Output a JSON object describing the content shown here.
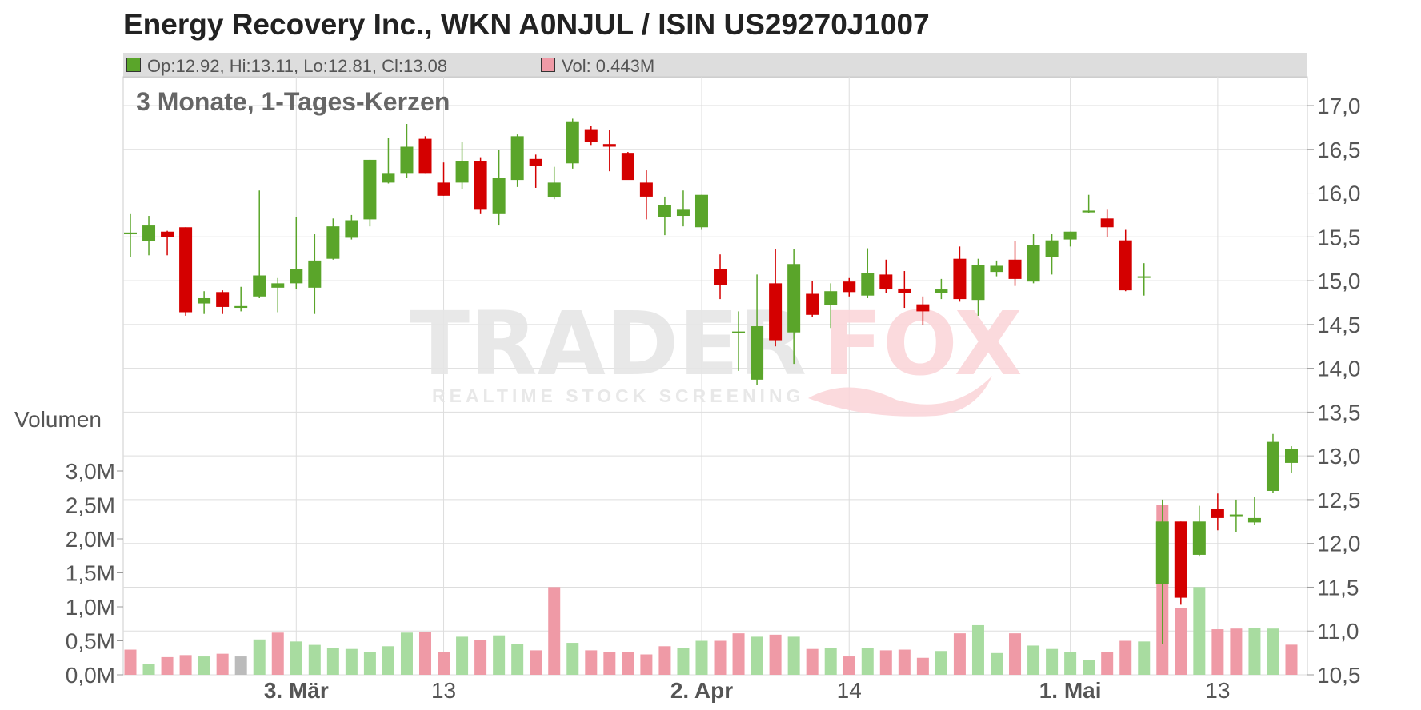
{
  "title": "Energy Recovery Inc., WKN A0NJUL / ISIN US29270J1007",
  "legend": {
    "ohlc_text": "Op:12.92, Hi:13.11, Lo:12.81, Cl:13.08",
    "volume_text": "Vol: 0.443M",
    "up_color": "#5aa52a",
    "vol_up_color": "#ef9aa6"
  },
  "watermark": {
    "brand_left": "TRADER",
    "brand_right": "FOX",
    "tagline": "REALTIME STOCK SCREENING"
  },
  "chart_data": {
    "type": "candlestick",
    "subtitle": "3 Monate, 1-Tages-Kerzen",
    "colors": {
      "up": "#5aa52a",
      "down": "#d40000",
      "vol_up": "#a8dca0",
      "vol_down": "#ef9aa6",
      "vol_neutral": "#bbbbbb",
      "grid": "#dddddd"
    },
    "price_axis": {
      "min": 10.5,
      "max": 17.0,
      "step": 0.5,
      "tick_labels": [
        "17,0",
        "16,5",
        "16,0",
        "15,5",
        "15,0",
        "14,5",
        "14,0",
        "13,5",
        "13,0",
        "12,5",
        "12,0",
        "11,5",
        "11,0",
        "10,5"
      ]
    },
    "volume_axis": {
      "label": "Volumen",
      "min": 0,
      "max": 3.0,
      "tick_labels": [
        "3,0M",
        "2,5M",
        "2,0M",
        "1,5M",
        "1,0M",
        "0,5M",
        "0,0M"
      ]
    },
    "x_labels": [
      {
        "index": 9,
        "text": "3. Mär",
        "bold": true
      },
      {
        "index": 17,
        "text": "13",
        "bold": false
      },
      {
        "index": 31,
        "text": "2. Apr",
        "bold": true
      },
      {
        "index": 39,
        "text": "14",
        "bold": false
      },
      {
        "index": 51,
        "text": "1. Mai",
        "bold": true
      },
      {
        "index": 59,
        "text": "13",
        "bold": false
      }
    ],
    "candles": [
      {
        "o": 15.53,
        "h": 15.76,
        "l": 15.27,
        "c": 15.55,
        "v": 0.37,
        "vc": "down"
      },
      {
        "o": 15.45,
        "h": 15.74,
        "l": 15.29,
        "c": 15.63,
        "v": 0.16,
        "vc": "up"
      },
      {
        "o": 15.56,
        "h": 15.57,
        "l": 15.29,
        "c": 15.5,
        "v": 0.26,
        "vc": "down"
      },
      {
        "o": 15.61,
        "h": 15.61,
        "l": 14.6,
        "c": 14.64,
        "v": 0.29,
        "vc": "down"
      },
      {
        "o": 14.74,
        "h": 14.88,
        "l": 14.62,
        "c": 14.8,
        "v": 0.27,
        "vc": "up"
      },
      {
        "o": 14.87,
        "h": 14.89,
        "l": 14.62,
        "c": 14.7,
        "v": 0.31,
        "vc": "down"
      },
      {
        "o": 14.69,
        "h": 14.93,
        "l": 14.65,
        "c": 14.71,
        "v": 0.27,
        "vc": "neutral"
      },
      {
        "o": 14.82,
        "h": 16.03,
        "l": 14.8,
        "c": 15.06,
        "v": 0.52,
        "vc": "up"
      },
      {
        "o": 14.92,
        "h": 15.03,
        "l": 14.64,
        "c": 14.97,
        "v": 0.62,
        "vc": "down"
      },
      {
        "o": 14.97,
        "h": 15.73,
        "l": 14.9,
        "c": 15.13,
        "v": 0.49,
        "vc": "up"
      },
      {
        "o": 14.92,
        "h": 15.53,
        "l": 14.62,
        "c": 15.23,
        "v": 0.44,
        "vc": "up"
      },
      {
        "o": 15.25,
        "h": 15.71,
        "l": 15.24,
        "c": 15.62,
        "v": 0.39,
        "vc": "up"
      },
      {
        "o": 15.49,
        "h": 15.75,
        "l": 15.47,
        "c": 15.69,
        "v": 0.38,
        "vc": "up"
      },
      {
        "o": 15.7,
        "h": 16.38,
        "l": 15.62,
        "c": 16.38,
        "v": 0.34,
        "vc": "up"
      },
      {
        "o": 16.12,
        "h": 16.63,
        "l": 16.11,
        "c": 16.23,
        "v": 0.42,
        "vc": "up"
      },
      {
        "o": 16.23,
        "h": 16.79,
        "l": 16.17,
        "c": 16.53,
        "v": 0.62,
        "vc": "up"
      },
      {
        "o": 16.62,
        "h": 16.65,
        "l": 16.23,
        "c": 16.23,
        "v": 0.63,
        "vc": "down"
      },
      {
        "o": 16.12,
        "h": 16.35,
        "l": 15.97,
        "c": 15.97,
        "v": 0.33,
        "vc": "down"
      },
      {
        "o": 16.12,
        "h": 16.58,
        "l": 16.05,
        "c": 16.37,
        "v": 0.56,
        "vc": "up"
      },
      {
        "o": 16.37,
        "h": 16.41,
        "l": 15.76,
        "c": 15.81,
        "v": 0.51,
        "vc": "down"
      },
      {
        "o": 15.76,
        "h": 16.49,
        "l": 15.63,
        "c": 16.17,
        "v": 0.58,
        "vc": "up"
      },
      {
        "o": 16.15,
        "h": 16.67,
        "l": 16.07,
        "c": 16.65,
        "v": 0.45,
        "vc": "up"
      },
      {
        "o": 16.39,
        "h": 16.44,
        "l": 16.06,
        "c": 16.31,
        "v": 0.36,
        "vc": "down"
      },
      {
        "o": 15.95,
        "h": 16.3,
        "l": 15.93,
        "c": 16.12,
        "v": 1.29,
        "vc": "down"
      },
      {
        "o": 16.34,
        "h": 16.85,
        "l": 16.28,
        "c": 16.82,
        "v": 0.47,
        "vc": "up"
      },
      {
        "o": 16.73,
        "h": 16.77,
        "l": 16.55,
        "c": 16.58,
        "v": 0.36,
        "vc": "down"
      },
      {
        "o": 16.56,
        "h": 16.72,
        "l": 16.25,
        "c": 16.53,
        "v": 0.33,
        "vc": "down"
      },
      {
        "o": 16.46,
        "h": 16.47,
        "l": 16.18,
        "c": 16.15,
        "v": 0.34,
        "vc": "down"
      },
      {
        "o": 16.12,
        "h": 16.26,
        "l": 15.7,
        "c": 15.96,
        "v": 0.3,
        "vc": "down"
      },
      {
        "o": 15.73,
        "h": 15.96,
        "l": 15.52,
        "c": 15.86,
        "v": 0.42,
        "vc": "down"
      },
      {
        "o": 15.74,
        "h": 16.03,
        "l": 15.62,
        "c": 15.81,
        "v": 0.4,
        "vc": "up"
      },
      {
        "o": 15.61,
        "h": 15.98,
        "l": 15.58,
        "c": 15.98,
        "v": 0.5,
        "vc": "up"
      },
      {
        "o": 15.13,
        "h": 15.3,
        "l": 14.79,
        "c": 14.95,
        "v": 0.5,
        "vc": "down"
      },
      {
        "o": 14.42,
        "h": 14.65,
        "l": 13.97,
        "c": 14.42,
        "v": 0.61,
        "vc": "down"
      },
      {
        "o": 13.87,
        "h": 15.07,
        "l": 13.81,
        "c": 14.48,
        "v": 0.56,
        "vc": "up"
      },
      {
        "o": 14.97,
        "h": 15.36,
        "l": 14.25,
        "c": 14.32,
        "v": 0.59,
        "vc": "down"
      },
      {
        "o": 14.41,
        "h": 15.36,
        "l": 14.05,
        "c": 15.19,
        "v": 0.56,
        "vc": "up"
      },
      {
        "o": 14.85,
        "h": 15.0,
        "l": 14.59,
        "c": 14.61,
        "v": 0.38,
        "vc": "down"
      },
      {
        "o": 14.72,
        "h": 14.97,
        "l": 14.46,
        "c": 14.88,
        "v": 0.4,
        "vc": "up"
      },
      {
        "o": 14.99,
        "h": 15.03,
        "l": 14.82,
        "c": 14.87,
        "v": 0.27,
        "vc": "down"
      },
      {
        "o": 14.83,
        "h": 15.37,
        "l": 14.8,
        "c": 15.09,
        "v": 0.39,
        "vc": "up"
      },
      {
        "o": 15.07,
        "h": 15.24,
        "l": 14.86,
        "c": 14.9,
        "v": 0.36,
        "vc": "down"
      },
      {
        "o": 14.91,
        "h": 15.11,
        "l": 14.69,
        "c": 14.86,
        "v": 0.37,
        "vc": "down"
      },
      {
        "o": 14.73,
        "h": 14.82,
        "l": 14.49,
        "c": 14.65,
        "v": 0.25,
        "vc": "down"
      },
      {
        "o": 14.86,
        "h": 15.02,
        "l": 14.79,
        "c": 14.9,
        "v": 0.35,
        "vc": "up"
      },
      {
        "o": 15.25,
        "h": 15.39,
        "l": 14.76,
        "c": 14.79,
        "v": 0.61,
        "vc": "down"
      },
      {
        "o": 14.78,
        "h": 15.25,
        "l": 14.6,
        "c": 15.18,
        "v": 0.73,
        "vc": "up"
      },
      {
        "o": 15.1,
        "h": 15.23,
        "l": 15.05,
        "c": 15.17,
        "v": 0.32,
        "vc": "up"
      },
      {
        "o": 15.24,
        "h": 15.45,
        "l": 14.94,
        "c": 15.02,
        "v": 0.61,
        "vc": "down"
      },
      {
        "o": 14.99,
        "h": 15.53,
        "l": 14.97,
        "c": 15.41,
        "v": 0.43,
        "vc": "up"
      },
      {
        "o": 15.27,
        "h": 15.53,
        "l": 15.07,
        "c": 15.46,
        "v": 0.38,
        "vc": "up"
      },
      {
        "o": 15.47,
        "h": 15.56,
        "l": 15.39,
        "c": 15.56,
        "v": 0.34,
        "vc": "up"
      },
      {
        "o": 15.78,
        "h": 15.98,
        "l": 15.77,
        "c": 15.8,
        "v": 0.22,
        "vc": "up"
      },
      {
        "o": 15.71,
        "h": 15.81,
        "l": 15.5,
        "c": 15.61,
        "v": 0.33,
        "vc": "down"
      },
      {
        "o": 15.46,
        "h": 15.58,
        "l": 14.88,
        "c": 14.89,
        "v": 0.5,
        "vc": "down"
      },
      {
        "o": 15.04,
        "h": 15.2,
        "l": 14.83,
        "c": 15.05,
        "v": 0.49,
        "vc": "up"
      },
      {
        "o": 11.54,
        "h": 12.5,
        "l": 10.85,
        "c": 12.25,
        "v": 2.5,
        "vc": "down"
      },
      {
        "o": 12.25,
        "h": 12.25,
        "l": 11.3,
        "c": 11.38,
        "v": 0.98,
        "vc": "down"
      },
      {
        "o": 11.87,
        "h": 12.43,
        "l": 11.85,
        "c": 12.25,
        "v": 1.29,
        "vc": "up"
      },
      {
        "o": 12.39,
        "h": 12.57,
        "l": 12.15,
        "c": 12.29,
        "v": 0.67,
        "vc": "down"
      },
      {
        "o": 12.33,
        "h": 12.5,
        "l": 12.13,
        "c": 12.33,
        "v": 0.68,
        "vc": "down"
      },
      {
        "o": 12.24,
        "h": 12.53,
        "l": 12.21,
        "c": 12.29,
        "v": 0.69,
        "vc": "up"
      },
      {
        "o": 12.6,
        "h": 13.25,
        "l": 12.58,
        "c": 13.16,
        "v": 0.68,
        "vc": "up"
      },
      {
        "o": 12.92,
        "h": 13.11,
        "l": 12.81,
        "c": 13.08,
        "v": 0.443,
        "vc": "down"
      }
    ]
  }
}
